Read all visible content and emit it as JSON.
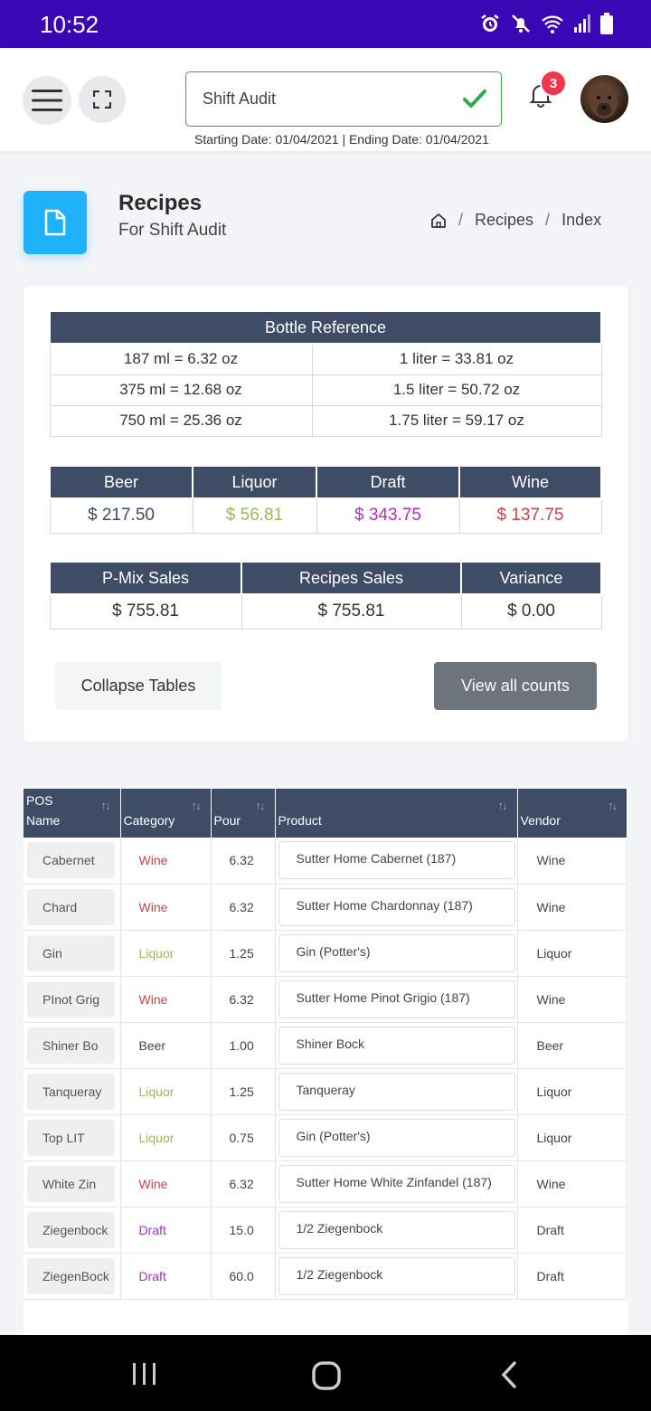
{
  "status_bar": {
    "time": "10:52"
  },
  "header": {
    "audit_label": "Shift Audit",
    "dates": "Starting Date: 01/04/2021 | Ending Date: 01/04/2021",
    "notification_count": "3"
  },
  "page": {
    "title": "Recipes",
    "subtitle": "For Shift Audit",
    "breadcrumb": [
      "Recipes",
      "Index"
    ]
  },
  "bottle_reference": {
    "title": "Bottle Reference",
    "rows": [
      [
        "187 ml = 6.32 oz",
        "1 liter = 33.81 oz"
      ],
      [
        "375 ml = 12.68 oz",
        "1.5 liter = 50.72 oz"
      ],
      [
        "750 ml = 25.36 oz",
        "1.75 liter = 59.17 oz"
      ]
    ]
  },
  "category_totals": {
    "headers": [
      "Beer",
      "Liquor",
      "Draft",
      "Wine"
    ],
    "values": [
      "$ 217.50",
      "$ 56.81",
      "$ 343.75",
      "$ 137.75"
    ],
    "colors": [
      "#3f4c66",
      "#9bb855",
      "#b32ec2",
      "#c9434a"
    ]
  },
  "sales": {
    "headers": [
      "P-Mix Sales",
      "Recipes Sales",
      "Variance"
    ],
    "values": [
      "$ 755.81",
      "$ 755.81",
      "$ 0.00"
    ]
  },
  "buttons": {
    "collapse": "Collapse Tables",
    "view_counts": "View all counts"
  },
  "recipes_table": {
    "headers": [
      "POS Name",
      "Category",
      "Pour",
      "Product",
      "Vendor"
    ],
    "category_colors": {
      "Wine": "#c9434a",
      "Liquor": "#9bb855",
      "Draft": "#b32ec2",
      "Beer": "#444444"
    },
    "rows": [
      {
        "pos": "Cabernet",
        "category": "Wine",
        "pour": "6.32",
        "product": "Sutter Home Cabernet (187)",
        "vendor": "Wine"
      },
      {
        "pos": "Chard",
        "category": "Wine",
        "pour": "6.32",
        "product": "Sutter Home Chardonnay (187)",
        "vendor": "Wine"
      },
      {
        "pos": "Gin",
        "category": "Liquor",
        "pour": "1.25",
        "product": "Gin (Potter's)",
        "vendor": "Liquor"
      },
      {
        "pos": "PInot Grig",
        "category": "Wine",
        "pour": "6.32",
        "product": "Sutter Home Pinot Grigio (187)",
        "vendor": "Wine"
      },
      {
        "pos": "Shiner Bo",
        "category": "Beer",
        "pour": "1.00",
        "product": "Shiner Bock",
        "vendor": "Beer"
      },
      {
        "pos": "Tanqueray",
        "category": "Liquor",
        "pour": "1.25",
        "product": "Tanqueray",
        "vendor": "Liquor"
      },
      {
        "pos": "Top LIT",
        "category": "Liquor",
        "pour": "0.75",
        "product": "Gin (Potter's)",
        "vendor": "Liquor"
      },
      {
        "pos": "White Zin",
        "category": "Wine",
        "pour": "6.32",
        "product": "Sutter Home White Zinfandel (187)",
        "vendor": "Wine"
      },
      {
        "pos": "Ziegenbock",
        "category": "Draft",
        "pour": "15.0",
        "product": "1/2 Ziegenbock",
        "vendor": "Draft"
      },
      {
        "pos": "ZiegenBock",
        "category": "Draft",
        "pour": "60.0",
        "product": "1/2 Ziegenbock",
        "vendor": "Draft"
      }
    ]
  }
}
